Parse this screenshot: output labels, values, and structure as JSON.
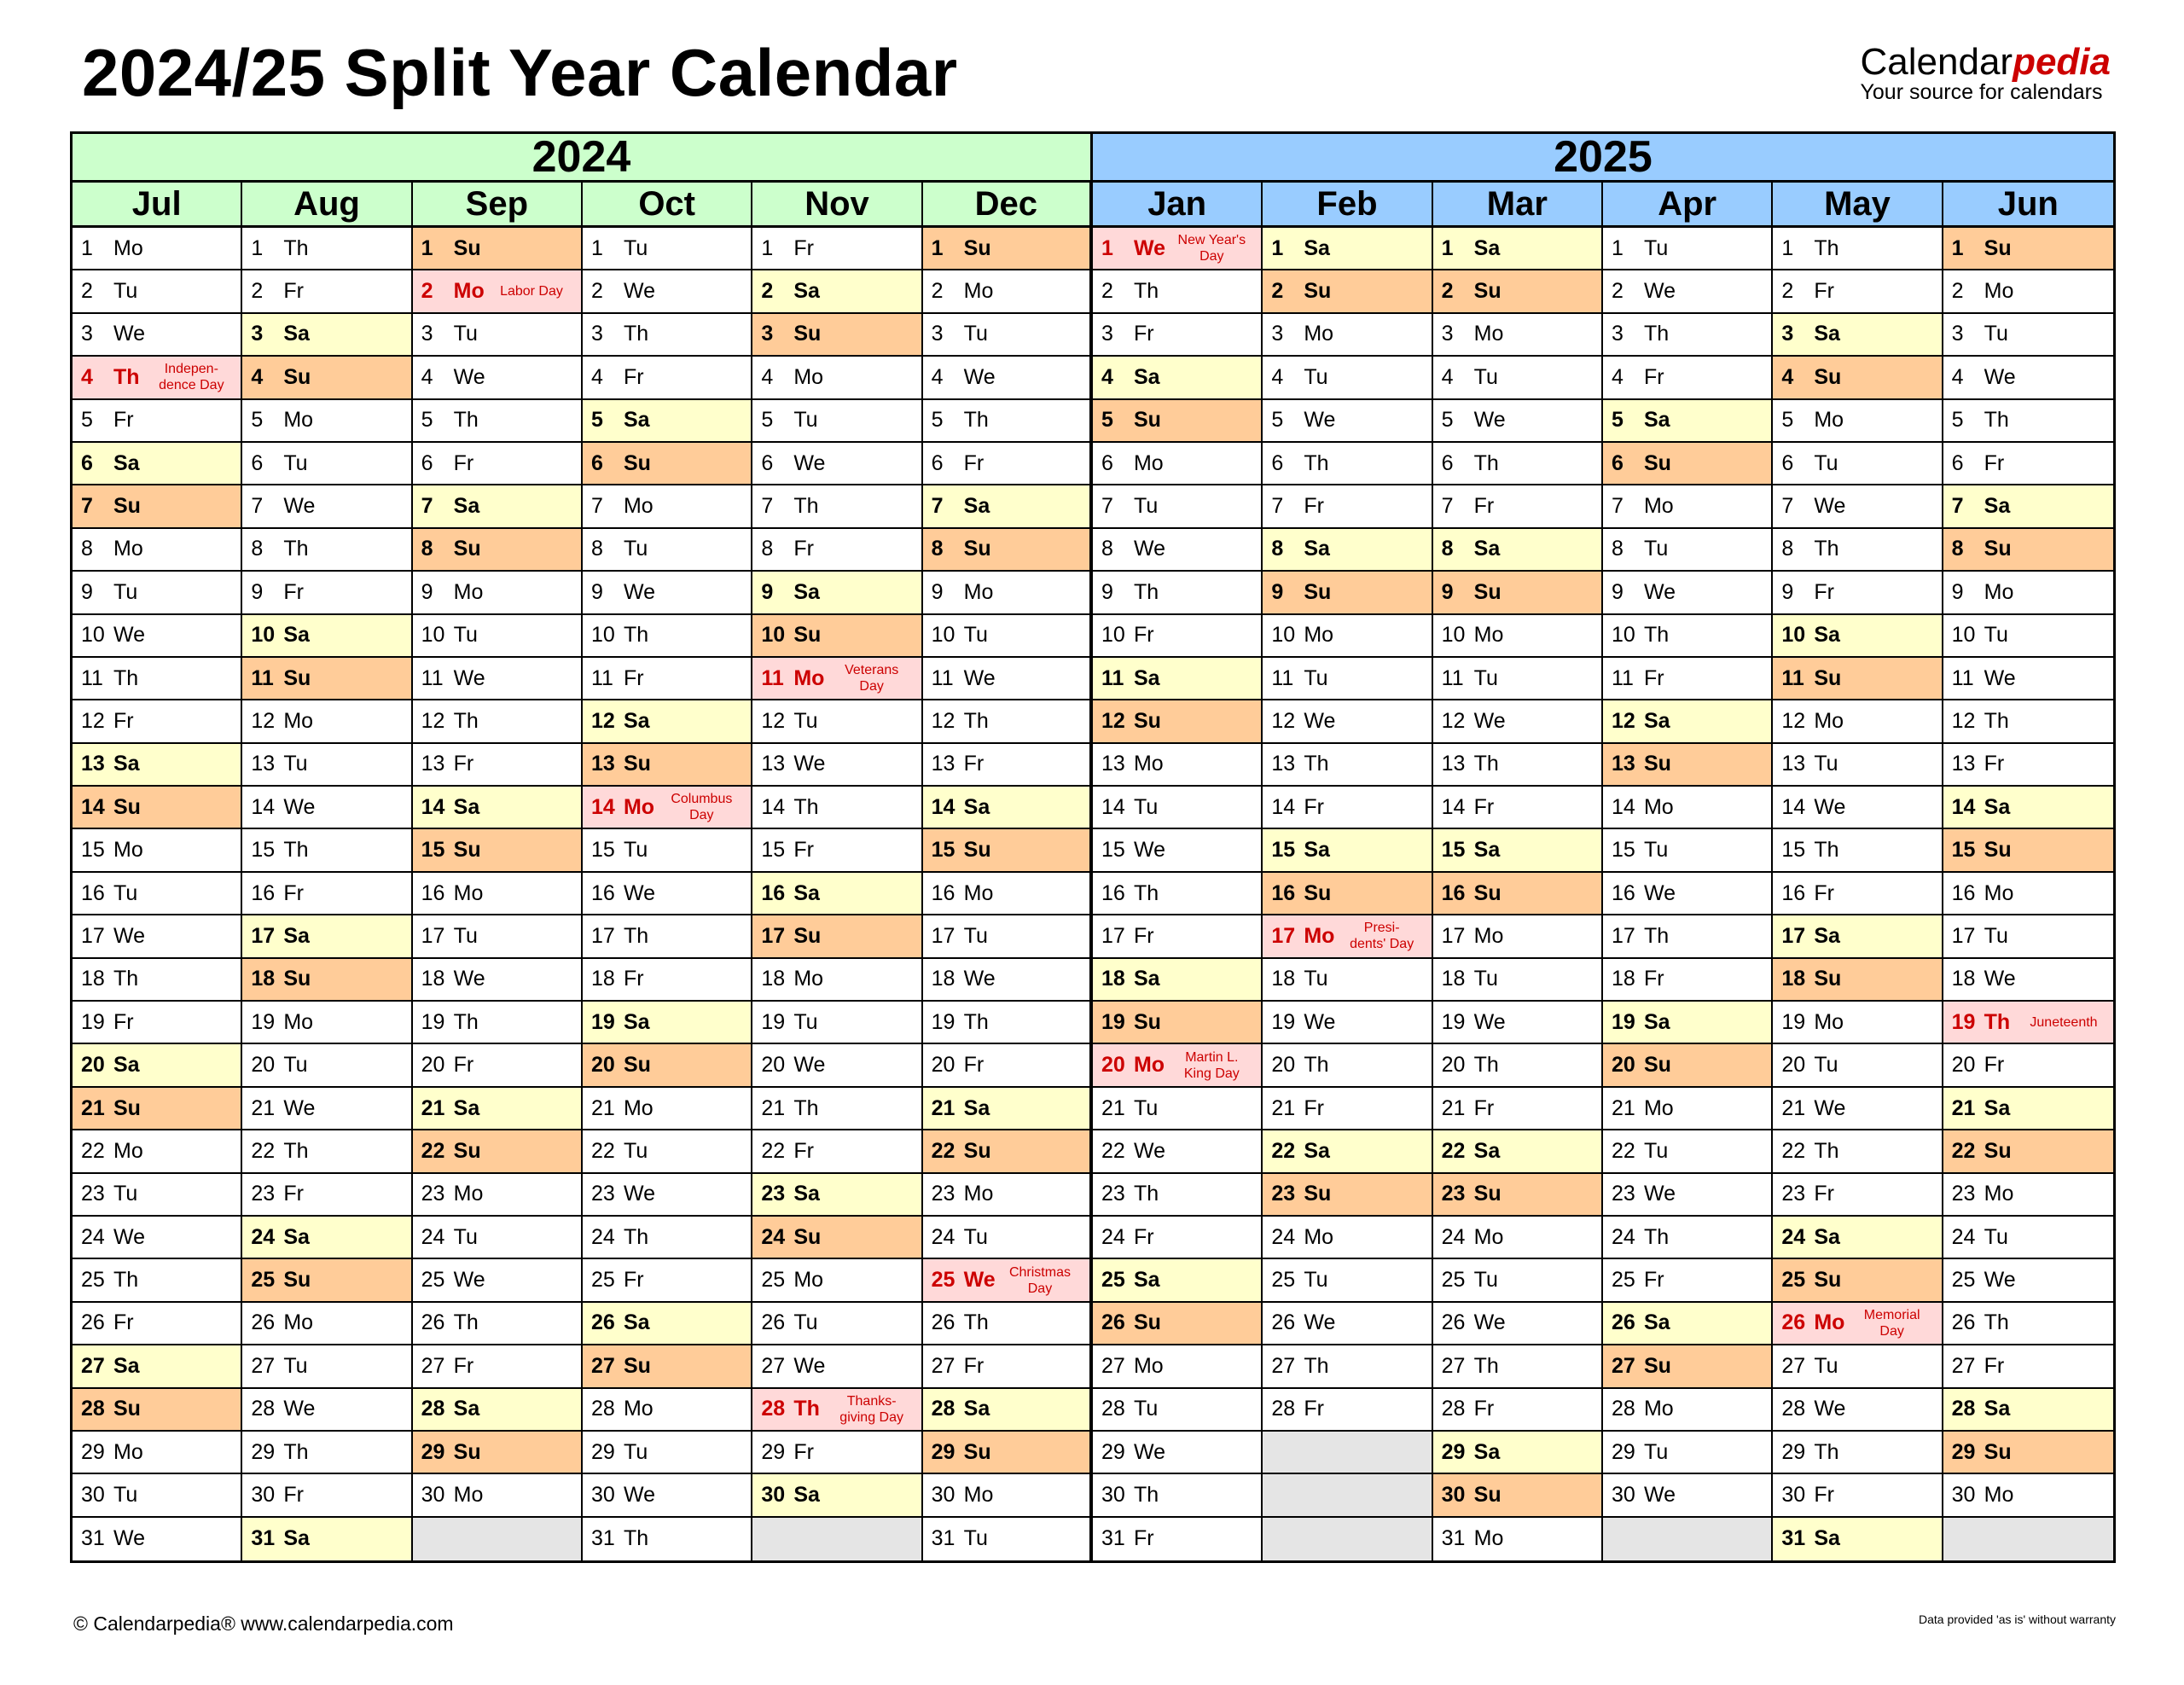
{
  "title": "2024/25 Split Year Calendar",
  "brand": {
    "name_plain": "Calendar",
    "name_accent": "pedia",
    "tagline": "Your source for calendars"
  },
  "colors": {
    "year2024": "#ccffcc",
    "year2025": "#99ccff",
    "saturday": "#ffffcc",
    "sunday": "#ffcc99",
    "holiday": "#ffd9d9",
    "holiday_text": "#cc0000",
    "empty": "#e5e5e5"
  },
  "weekday_names": [
    "Mo",
    "Tu",
    "We",
    "Th",
    "Fr",
    "Sa",
    "Su"
  ],
  "years": [
    {
      "label": "2024",
      "months": [
        {
          "name": "Jul",
          "first_weekday": "Mo",
          "length": 31,
          "holidays": {
            "4": "Indepen-\ndence Day"
          }
        },
        {
          "name": "Aug",
          "first_weekday": "Th",
          "length": 31,
          "holidays": {}
        },
        {
          "name": "Sep",
          "first_weekday": "Su",
          "length": 30,
          "holidays": {
            "2": "Labor Day"
          }
        },
        {
          "name": "Oct",
          "first_weekday": "Tu",
          "length": 31,
          "holidays": {
            "14": "Columbus\nDay"
          }
        },
        {
          "name": "Nov",
          "first_weekday": "Fr",
          "length": 30,
          "holidays": {
            "11": "Veterans\nDay",
            "28": "Thanks-\ngiving Day"
          }
        },
        {
          "name": "Dec",
          "first_weekday": "Su",
          "length": 31,
          "holidays": {
            "25": "Christmas\nDay"
          }
        }
      ]
    },
    {
      "label": "2025",
      "months": [
        {
          "name": "Jan",
          "first_weekday": "We",
          "length": 31,
          "holidays": {
            "1": "New Year's\nDay",
            "20": "Martin L.\nKing Day"
          }
        },
        {
          "name": "Feb",
          "first_weekday": "Sa",
          "length": 28,
          "holidays": {
            "17": "Presi-\ndents' Day"
          }
        },
        {
          "name": "Mar",
          "first_weekday": "Sa",
          "length": 31,
          "holidays": {}
        },
        {
          "name": "Apr",
          "first_weekday": "Tu",
          "length": 30,
          "holidays": {}
        },
        {
          "name": "May",
          "first_weekday": "Th",
          "length": 31,
          "holidays": {
            "26": "Memorial\nDay"
          }
        },
        {
          "name": "Jun",
          "first_weekday": "Su",
          "length": 30,
          "holidays": {
            "19": "Juneteenth"
          }
        }
      ]
    }
  ],
  "footer": {
    "copyright": "© Calendarpedia®   www.calendarpedia.com",
    "disclaimer": "Data provided 'as is' without warranty"
  }
}
